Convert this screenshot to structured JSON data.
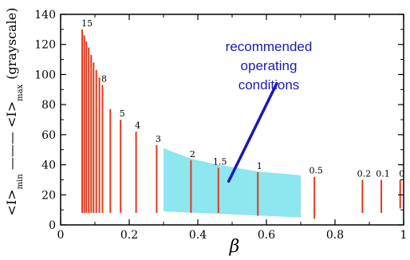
{
  "chart_data": {
    "type": "bar",
    "xlabel": "β",
    "ylabel_parts": {
      "left": "<I>",
      "left_sub": "min",
      "right": "<I>",
      "right_sub": "max",
      "unit": "(grayscale)"
    },
    "xlim": [
      0,
      1
    ],
    "ylim": [
      0,
      140
    ],
    "xticks": [
      0,
      0.2,
      0.4,
      0.6,
      0.8,
      1
    ],
    "xtick_labels": [
      "0",
      "0.2",
      "0.4",
      "0.6",
      "0.8",
      "1"
    ],
    "yticks": [
      0,
      20,
      40,
      60,
      80,
      100,
      120,
      140
    ],
    "ytick_labels": [
      "0",
      "20",
      "40",
      "60",
      "80",
      "100",
      "120",
      "140"
    ],
    "bar_color": "#e03a1e",
    "region_color": "#8ee6ee",
    "annotation_color": "#1a1ab8",
    "bars": [
      {
        "x": 0.063,
        "min": 8,
        "max": 130,
        "label": "15"
      },
      {
        "x": 0.069,
        "min": 8,
        "max": 126,
        "label": ""
      },
      {
        "x": 0.075,
        "min": 8,
        "max": 122,
        "label": ""
      },
      {
        "x": 0.082,
        "min": 8,
        "max": 118,
        "label": ""
      },
      {
        "x": 0.089,
        "min": 8,
        "max": 113,
        "label": ""
      },
      {
        "x": 0.096,
        "min": 8,
        "max": 108,
        "label": ""
      },
      {
        "x": 0.104,
        "min": 8,
        "max": 103,
        "label": ""
      },
      {
        "x": 0.113,
        "min": 8,
        "max": 98,
        "label": ""
      },
      {
        "x": 0.122,
        "min": 8,
        "max": 93,
        "label": "8"
      },
      {
        "x": 0.145,
        "min": 8,
        "max": 77,
        "label": ""
      },
      {
        "x": 0.175,
        "min": 8,
        "max": 70,
        "label": "5"
      },
      {
        "x": 0.22,
        "min": 8,
        "max": 62,
        "label": "4"
      },
      {
        "x": 0.28,
        "min": 8,
        "max": 53,
        "label": "3"
      },
      {
        "x": 0.38,
        "min": 8,
        "max": 43,
        "label": "2"
      },
      {
        "x": 0.46,
        "min": 8,
        "max": 38,
        "label": "1.5"
      },
      {
        "x": 0.575,
        "min": 6,
        "max": 35,
        "label": "1"
      },
      {
        "x": 0.74,
        "min": 4,
        "max": 32,
        "label": "0.5"
      },
      {
        "x": 0.88,
        "min": 8,
        "max": 30,
        "label": "0.2"
      },
      {
        "x": 0.935,
        "min": 8,
        "max": 30,
        "label": "0.1"
      },
      {
        "x": 0.99,
        "min": 11,
        "max": 30,
        "label": "0"
      }
    ],
    "region": {
      "upper": [
        [
          0.3,
          51
        ],
        [
          0.38,
          44
        ],
        [
          0.46,
          40
        ],
        [
          0.575,
          35.5
        ],
        [
          0.7,
          33
        ]
      ],
      "lower": [
        [
          0.7,
          5
        ],
        [
          0.3,
          9
        ]
      ]
    },
    "annotation": {
      "lines": [
        "recommended",
        "operating",
        "conditions"
      ],
      "arrow_from": [
        0.63,
        94
      ],
      "arrow_to": [
        0.49,
        29
      ]
    }
  }
}
